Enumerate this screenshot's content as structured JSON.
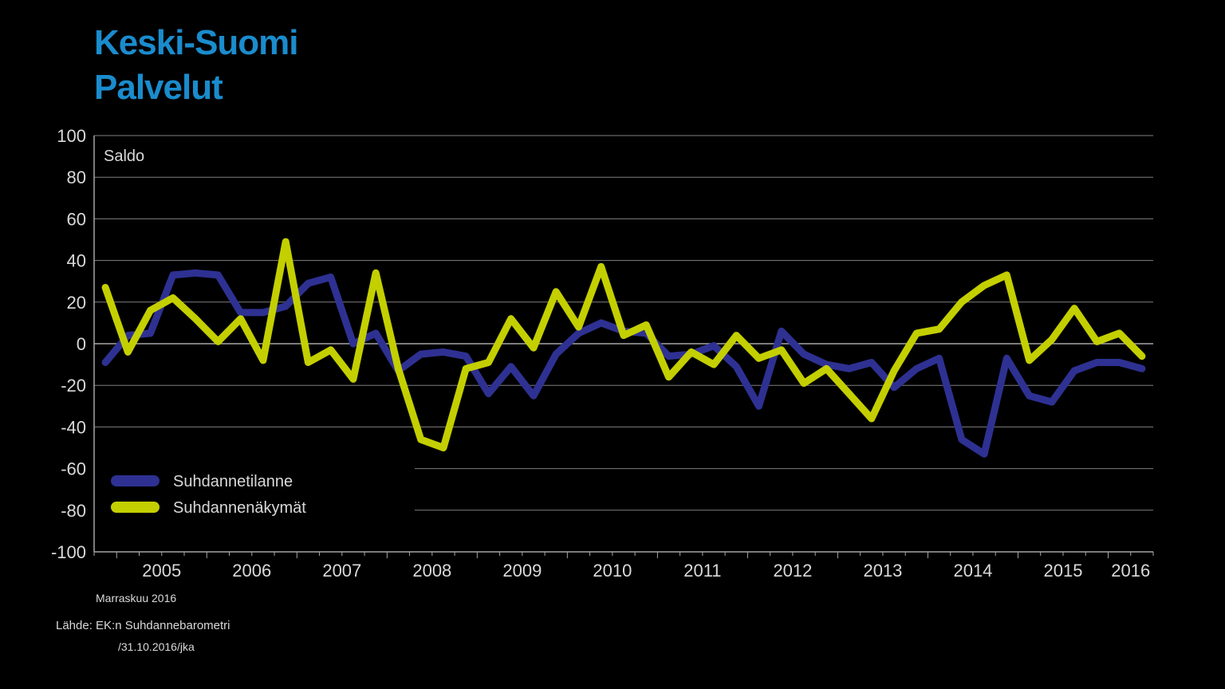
{
  "title": {
    "line1": "Keski-Suomi",
    "line2": "Palvelut"
  },
  "footer": {
    "month": "Marraskuu 2016",
    "source": "Lähde: EK:n Suhdannebarometri",
    "stamp": "/31.10.2016/jka"
  },
  "colors": {
    "title": "#1a8ccd",
    "series1": "#2e3192",
    "series2": "#c4cf00",
    "grid": "#7f7f7f",
    "axis": "#a6a6a6",
    "text": "#d9d9d9"
  },
  "chart_data": {
    "type": "line",
    "ylabel": "Saldo",
    "ylim": [
      -100,
      100
    ],
    "yticks": [
      "100",
      "80",
      "60",
      "40",
      "20",
      "0",
      "-20",
      "-40",
      "-60",
      "-80",
      "-100"
    ],
    "xticks": [
      "2005",
      "2006",
      "2007",
      "2008",
      "2009",
      "2010",
      "2011",
      "2012",
      "2013",
      "2014",
      "2015",
      "2016"
    ],
    "x_period": "quarterly, 2004 Q4 – 2016 Q4",
    "grid": true,
    "legend_position": "bottom-left",
    "series": [
      {
        "name": "Suhdannetilanne",
        "color": "#2e3192",
        "values": [
          -9,
          4,
          5,
          33,
          34,
          33,
          15,
          15,
          18,
          29,
          32,
          0,
          5,
          -13,
          -5,
          -4,
          -6,
          -24,
          -11,
          -25,
          -5,
          5,
          10,
          6,
          5,
          -6,
          -5,
          -1,
          -11,
          -30,
          6,
          -5,
          -10,
          -12,
          -9,
          -21,
          -12,
          -7,
          -46,
          -53,
          -7,
          -25,
          -28,
          -13,
          -9,
          -9,
          -12
        ]
      },
      {
        "name": "Suhdannenäkymät",
        "color": "#c4cf00",
        "values": [
          27,
          -4,
          16,
          22,
          12,
          1,
          12,
          -8,
          49,
          -9,
          -3,
          -17,
          34,
          -12,
          -46,
          -50,
          -12,
          -9,
          12,
          -2,
          25,
          8,
          37,
          4,
          9,
          -16,
          -4,
          -10,
          4,
          -7,
          -3,
          -19,
          -12,
          -24,
          -36,
          -13,
          5,
          7,
          20,
          28,
          33,
          -8,
          2,
          17,
          1,
          5,
          -6
        ]
      }
    ]
  }
}
